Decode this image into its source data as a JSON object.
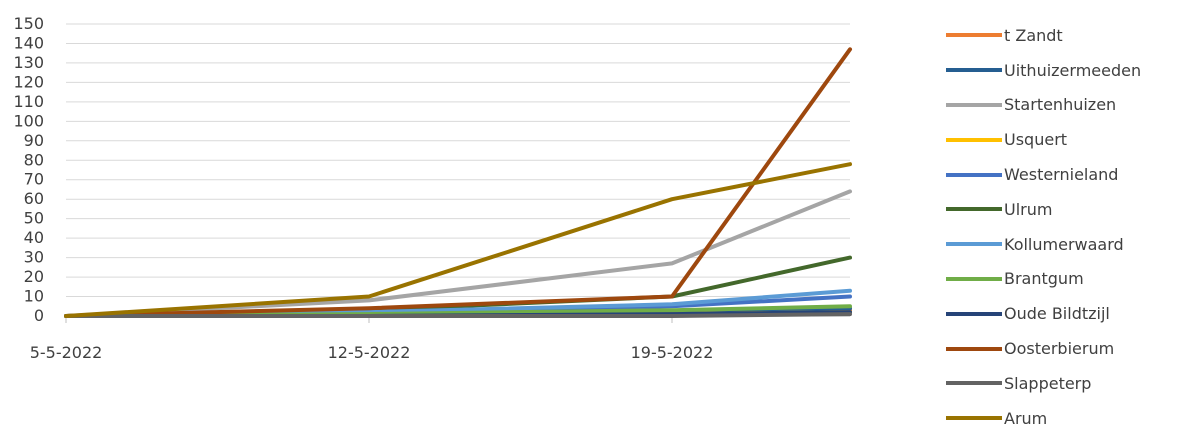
{
  "chart_data": {
    "type": "line",
    "x": [
      "5-5-2022",
      "12-5-2022",
      "19-5-2022",
      "26-5-2022"
    ],
    "xtick_labels": [
      "5-5-2022",
      "12-5-2022",
      "19-5-2022"
    ],
    "yticks": [
      "0",
      "10",
      "20",
      "30",
      "40",
      "50",
      "60",
      "70",
      "80",
      "90",
      "100",
      "110",
      "120",
      "130",
      "140",
      "150"
    ],
    "ylim": [
      0,
      150
    ],
    "grid": true,
    "legend_position": "right",
    "series": [
      {
        "name": "t Zandt",
        "color": "#ED7D31",
        "values": [
          0,
          1,
          2,
          3
        ]
      },
      {
        "name": "Uithuizermeeden",
        "color": "#255E91",
        "values": [
          0,
          1,
          2,
          4
        ]
      },
      {
        "name": "Startenhuizen",
        "color": "#A5A5A5",
        "values": [
          0,
          8,
          27,
          64
        ]
      },
      {
        "name": "Usquert",
        "color": "#FFC000",
        "values": [
          0,
          0,
          1,
          2
        ]
      },
      {
        "name": "Westernieland",
        "color": "#4472C4",
        "values": [
          0,
          2,
          5,
          10
        ]
      },
      {
        "name": "Ulrum",
        "color": "#43682B",
        "values": [
          0,
          3,
          10,
          30
        ]
      },
      {
        "name": "Kollumerwaard",
        "color": "#5B9BD5",
        "values": [
          0,
          2,
          6,
          13
        ]
      },
      {
        "name": "Brantgum",
        "color": "#70AD47",
        "values": [
          0,
          1,
          3,
          5
        ]
      },
      {
        "name": "Oude Bildtzijl",
        "color": "#264478",
        "values": [
          0,
          0,
          1,
          2
        ]
      },
      {
        "name": "Oosterbierum",
        "color": "#9E480E",
        "values": [
          0,
          4,
          10,
          137
        ]
      },
      {
        "name": "Slappeterp",
        "color": "#636363",
        "values": [
          0,
          0,
          0,
          1
        ]
      },
      {
        "name": "Arum",
        "color": "#997300",
        "values": [
          0,
          10,
          60,
          78
        ]
      }
    ]
  }
}
